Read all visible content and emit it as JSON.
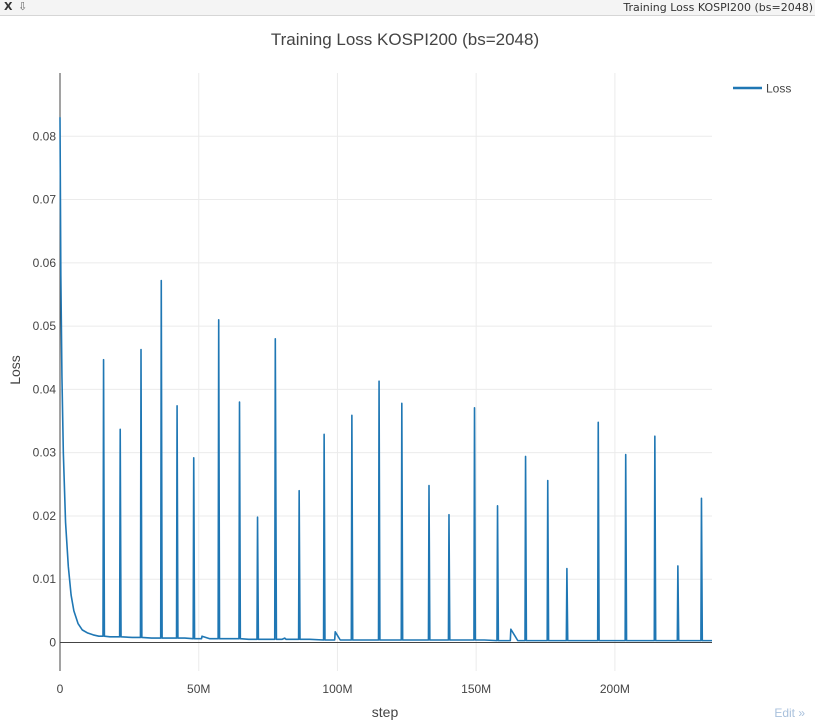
{
  "window": {
    "close_label": "X",
    "pin_label": "⇩",
    "title": "Training Loss KOSPI200 (bs=2048)"
  },
  "edit_label": "Edit »",
  "colors": {
    "series": "#1f77b4",
    "grid": "#ebebeb",
    "axis": "#444444",
    "text": "#444444"
  },
  "chart_data": {
    "type": "line",
    "title": "Training Loss KOSPI200 (bs=2048)",
    "xlabel": "step",
    "ylabel": "Loss",
    "xlim": [
      0,
      235000000
    ],
    "ylim": [
      -0.0045,
      0.09
    ],
    "x_ticks": [
      0,
      50000000,
      100000000,
      150000000,
      200000000
    ],
    "x_tick_labels": [
      "0",
      "50M",
      "100M",
      "150M",
      "200M"
    ],
    "y_ticks": [
      0,
      0.01,
      0.02,
      0.03,
      0.04,
      0.05,
      0.06,
      0.07,
      0.08
    ],
    "y_tick_labels": [
      "0",
      "0.01",
      "0.02",
      "0.03",
      "0.04",
      "0.05",
      "0.06",
      "0.07",
      "0.08"
    ],
    "grid": true,
    "legend_position": "top-right",
    "series": [
      {
        "name": "Loss",
        "x": [
          0,
          300000,
          700000,
          1200000,
          2000000,
          3000000,
          4000000,
          5000000,
          6500000,
          8000000,
          10000000,
          12000000,
          14000000,
          15500000,
          15700000,
          16000000,
          18000000,
          21500000,
          21700000,
          22000000,
          26000000,
          29000000,
          29200000,
          29500000,
          33000000,
          36300000,
          36500000,
          36800000,
          40000000,
          42000000,
          42200000,
          42500000,
          45000000,
          48000000,
          48200000,
          48500000,
          51000000,
          51200000,
          54000000,
          57000000,
          57200000,
          57500000,
          61000000,
          64500000,
          64700000,
          65000000,
          68000000,
          71000000,
          71200000,
          71500000,
          74000000,
          77400000,
          77600000,
          78000000,
          80000000,
          81000000,
          81500000,
          83000000,
          86000000,
          86200000,
          86500000,
          90000000,
          95000000,
          95200000,
          95500000,
          99000000,
          99200000,
          101000000,
          105000000,
          105200000,
          105500000,
          110000000,
          114800000,
          115000000,
          115300000,
          119000000,
          123000000,
          123200000,
          123500000,
          128000000,
          132800000,
          133000000,
          133300000,
          137000000,
          140000000,
          140200000,
          140500000,
          145000000,
          149200000,
          149400000,
          149700000,
          153000000,
          157500000,
          157700000,
          158000000,
          160000000,
          162300000,
          162500000,
          165000000,
          167600000,
          167800000,
          168100000,
          172000000,
          175600000,
          175800000,
          176100000,
          180000000,
          182500000,
          182700000,
          183000000,
          188000000,
          193800000,
          194000000,
          194300000,
          198000000,
          203700000,
          203900000,
          204200000,
          209000000,
          214200000,
          214400000,
          214700000,
          218000000,
          222500000,
          222700000,
          223000000,
          227000000,
          231000000,
          231200000,
          231500000,
          235000000
        ],
        "values": [
          0.083,
          0.058,
          0.042,
          0.03,
          0.019,
          0.012,
          0.0075,
          0.005,
          0.003,
          0.002,
          0.0015,
          0.0012,
          0.001,
          0.001,
          0.0447,
          0.001,
          0.0009,
          0.0009,
          0.0337,
          0.0009,
          0.0008,
          0.0008,
          0.0463,
          0.0008,
          0.0007,
          0.0007,
          0.0572,
          0.0007,
          0.0007,
          0.0007,
          0.0374,
          0.0007,
          0.0007,
          0.0006,
          0.0292,
          0.0006,
          0.0006,
          0.001,
          0.0006,
          0.0006,
          0.051,
          0.0006,
          0.0006,
          0.0006,
          0.038,
          0.0006,
          0.0005,
          0.0005,
          0.0198,
          0.0005,
          0.0005,
          0.0005,
          0.048,
          0.0005,
          0.0005,
          0.0007,
          0.0005,
          0.0005,
          0.0005,
          0.024,
          0.0005,
          0.0005,
          0.0004,
          0.0329,
          0.0004,
          0.0004,
          0.0017,
          0.0004,
          0.0004,
          0.0359,
          0.0004,
          0.0004,
          0.0004,
          0.0413,
          0.0004,
          0.0004,
          0.0004,
          0.0378,
          0.0004,
          0.0004,
          0.0004,
          0.0248,
          0.0004,
          0.0004,
          0.0004,
          0.0202,
          0.0004,
          0.0004,
          0.0004,
          0.0371,
          0.0004,
          0.0004,
          0.0003,
          0.0216,
          0.0003,
          0.0003,
          0.0003,
          0.0021,
          0.0003,
          0.0003,
          0.0294,
          0.0003,
          0.0003,
          0.0003,
          0.0256,
          0.0003,
          0.0003,
          0.0003,
          0.0117,
          0.0003,
          0.0003,
          0.0003,
          0.0348,
          0.0003,
          0.0003,
          0.0003,
          0.0297,
          0.0003,
          0.0003,
          0.0003,
          0.0326,
          0.0003,
          0.0003,
          0.0003,
          0.0121,
          0.0003,
          0.0003,
          0.0003,
          0.0228,
          0.0003,
          0.0003
        ]
      }
    ]
  }
}
